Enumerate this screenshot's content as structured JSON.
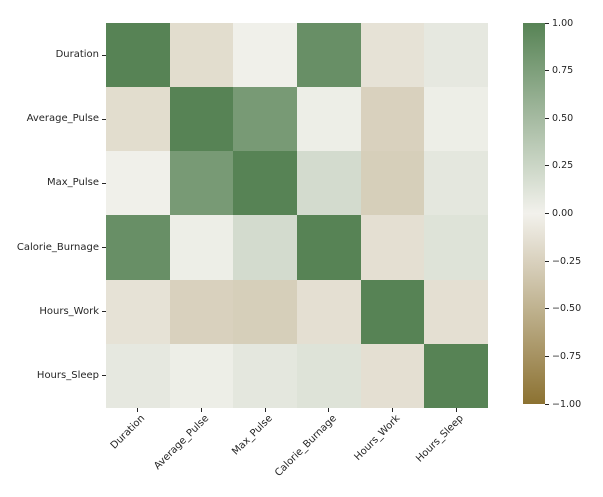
{
  "chart_data": {
    "type": "heatmap",
    "title": "",
    "xlabel": "",
    "ylabel": "",
    "categories": [
      "Duration",
      "Average_Pulse",
      "Max_Pulse",
      "Calorie_Burnage",
      "Hours_Work",
      "Hours_Sleep"
    ],
    "matrix": [
      [
        1.0,
        -0.16,
        0.01,
        0.89,
        -0.12,
        0.08
      ],
      [
        -0.16,
        1.0,
        0.79,
        0.03,
        -0.25,
        0.03
      ],
      [
        0.01,
        0.79,
        1.0,
        0.2,
        -0.27,
        0.09
      ],
      [
        0.89,
        0.03,
        0.2,
        1.0,
        -0.14,
        0.13
      ],
      [
        -0.12,
        -0.25,
        -0.27,
        -0.14,
        1.0,
        -0.14
      ],
      [
        0.08,
        0.03,
        0.09,
        0.13,
        -0.14,
        1.0
      ]
    ],
    "vmin": -1.0,
    "vmax": 1.0,
    "legend_position": "right",
    "grid": false,
    "colorbar_tick_labels": [
      "1.00",
      "0.75",
      "0.50",
      "0.25",
      "0.00",
      "−0.25",
      "−0.50",
      "−0.75",
      "−1.00"
    ],
    "colorbar_tick_values": [
      1.0,
      0.75,
      0.5,
      0.25,
      0.0,
      -0.25,
      -0.5,
      -0.75,
      -1.0
    ],
    "colors": {
      "positive_max": "#578355",
      "center": "#f2f1ec",
      "negative_min": "#8c7232",
      "tick": "#262626",
      "background": "#ffffff"
    }
  }
}
